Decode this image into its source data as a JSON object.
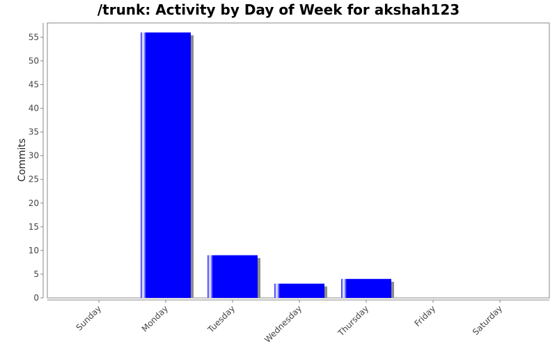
{
  "chart_data": {
    "type": "bar",
    "title": "/trunk: Activity by Day of Week for akshah123",
    "xlabel": "",
    "ylabel": "Commits",
    "categories": [
      "Sunday",
      "Monday",
      "Tuesday",
      "Wednesday",
      "Thursday",
      "Friday",
      "Saturday"
    ],
    "values": [
      0,
      56,
      9,
      3,
      4,
      0,
      0
    ],
    "ylim": [
      0,
      58
    ],
    "yticks": [
      0,
      5,
      10,
      15,
      20,
      25,
      30,
      35,
      40,
      45,
      50,
      55
    ],
    "grid": false,
    "legend": "none",
    "bar_color": "#0000ff",
    "shadow_color": "#8c8c8c"
  }
}
